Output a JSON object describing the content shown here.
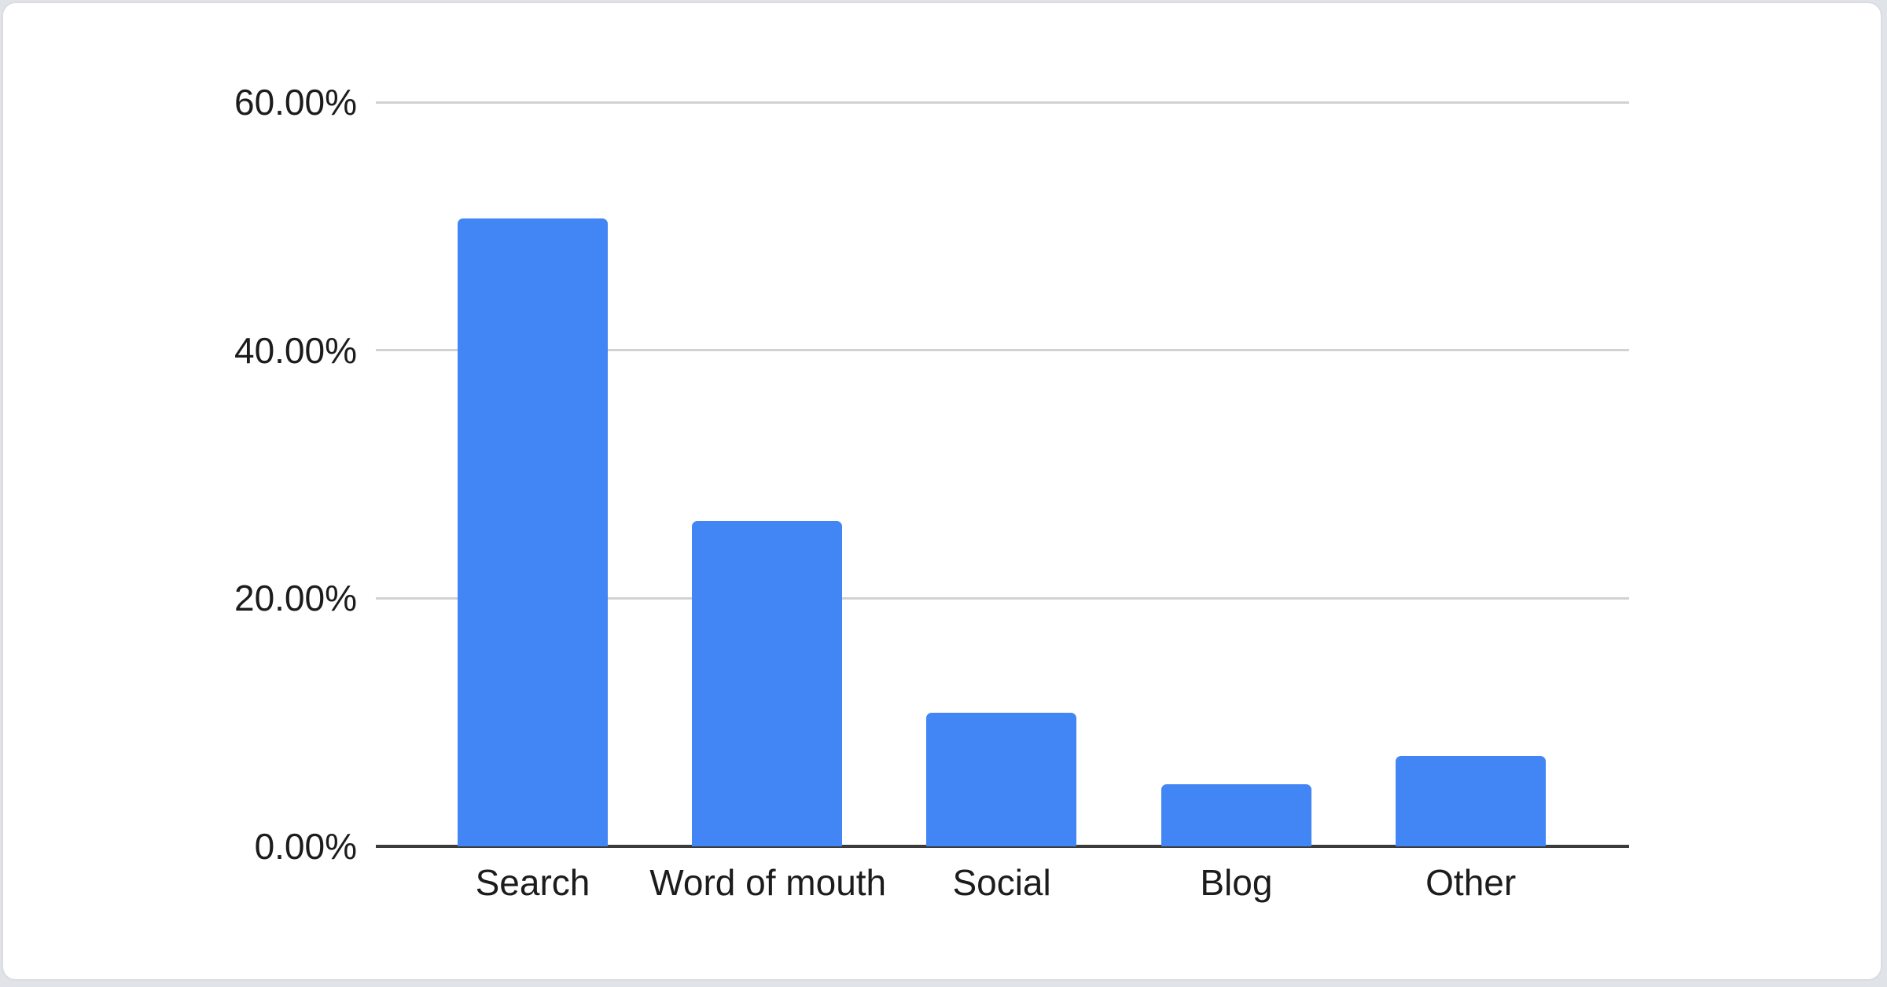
{
  "chart_data": {
    "type": "bar",
    "title": "",
    "xlabel": "",
    "ylabel": "",
    "categories": [
      "Search",
      "Word of mouth",
      "Social",
      "Blog",
      "Other"
    ],
    "values": [
      50.6,
      26.2,
      10.8,
      5.0,
      7.3
    ],
    "ylim": [
      0,
      60
    ],
    "yticks": [
      {
        "value": 0,
        "label": "0.00%"
      },
      {
        "value": 20,
        "label": "20.00%"
      },
      {
        "value": 40,
        "label": "40.00%"
      },
      {
        "value": 60,
        "label": "60.00%"
      }
    ],
    "grid": true,
    "legend": "none",
    "colors": {
      "bar": "#4285f4",
      "gridline": "#d2d2d2",
      "axis_line": "#3b3b3b",
      "label_text": "#1c1c1c",
      "card_background": "#ffffff",
      "card_border": "#dadce0"
    }
  }
}
